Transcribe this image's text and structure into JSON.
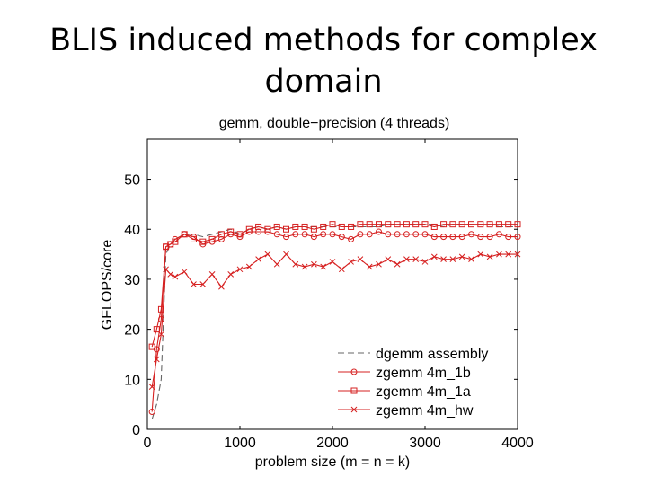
{
  "slide": {
    "title_line1": "BLIS induced methods for complex",
    "title_line2": "domain"
  },
  "colors": {
    "red": "#d62020",
    "gray": "#666666",
    "axis": "#000000"
  },
  "chart_data": {
    "type": "line",
    "title": "gemm, double−precision (4 threads)",
    "xlabel": "problem size (m = n = k)",
    "ylabel": "GFLOPS/core",
    "xlim": [
      0,
      4000
    ],
    "ylim": [
      0,
      58
    ],
    "xticks": [
      0,
      1000,
      2000,
      3000,
      4000
    ],
    "yticks": [
      0,
      10,
      20,
      30,
      40,
      50
    ],
    "grid": false,
    "legend_position": "bottom-right",
    "x": [
      50,
      100,
      150,
      200,
      250,
      300,
      400,
      500,
      600,
      700,
      800,
      900,
      1000,
      1100,
      1200,
      1300,
      1400,
      1500,
      1600,
      1700,
      1800,
      1900,
      2000,
      2100,
      2200,
      2300,
      2400,
      2500,
      2600,
      2700,
      2800,
      2900,
      3000,
      3100,
      3200,
      3300,
      3400,
      3500,
      3600,
      3700,
      3800,
      3900,
      4000
    ],
    "series": [
      {
        "name": "dgemm assembly",
        "style": "dashed-gray",
        "marker": "none",
        "values": [
          2,
          5,
          10,
          35,
          37,
          38,
          39,
          39,
          38.5,
          39,
          39.5,
          40,
          39,
          40,
          40.5,
          40,
          40.5,
          40,
          40.5,
          40.5,
          40.5,
          40.5,
          40.5,
          40.5,
          40.5,
          40.5,
          40.5,
          40.5,
          41,
          41,
          41,
          41,
          41,
          41,
          40.5,
          41,
          41,
          41,
          41,
          41,
          40.5,
          40.5,
          40.5
        ]
      },
      {
        "name": "zgemm 4m_1b",
        "style": "solid-red",
        "marker": "circle",
        "values": [
          3.5,
          16,
          22,
          36.5,
          37,
          38,
          39,
          38.5,
          37,
          37.5,
          38,
          39,
          38.5,
          39.5,
          39.5,
          39.5,
          39,
          38.5,
          39,
          39,
          38.5,
          39,
          39,
          38.5,
          38,
          39,
          39,
          39.5,
          39,
          39,
          39,
          39,
          39,
          38.5,
          38.5,
          38.5,
          38.5,
          39,
          38.5,
          38.5,
          39,
          38.5,
          38.5
        ]
      },
      {
        "name": "zgemm 4m_1a",
        "style": "solid-red",
        "marker": "square",
        "values": [
          16.5,
          20,
          24,
          36.5,
          37,
          37.5,
          39,
          38,
          37.5,
          38,
          39,
          39.5,
          39,
          40,
          40.5,
          40,
          40.5,
          40,
          40.5,
          40.5,
          40,
          40.5,
          41,
          40.5,
          40.5,
          41,
          41,
          41,
          41,
          41,
          41,
          41,
          41,
          40.5,
          41,
          41,
          41,
          41,
          41,
          41,
          41,
          41,
          41
        ]
      },
      {
        "name": "zgemm 4m_hw",
        "style": "solid-red",
        "marker": "x",
        "values": [
          8.5,
          14,
          19,
          32,
          31,
          30.5,
          31.5,
          29,
          29,
          31,
          28.5,
          31,
          32,
          32.5,
          34,
          35,
          33,
          35,
          33,
          32.5,
          33,
          32.5,
          33.5,
          32,
          33.5,
          34,
          32.5,
          33,
          34,
          33,
          34,
          34,
          33.5,
          34.5,
          34,
          34,
          34.5,
          34,
          35,
          34.5,
          35,
          35,
          35
        ]
      }
    ]
  }
}
